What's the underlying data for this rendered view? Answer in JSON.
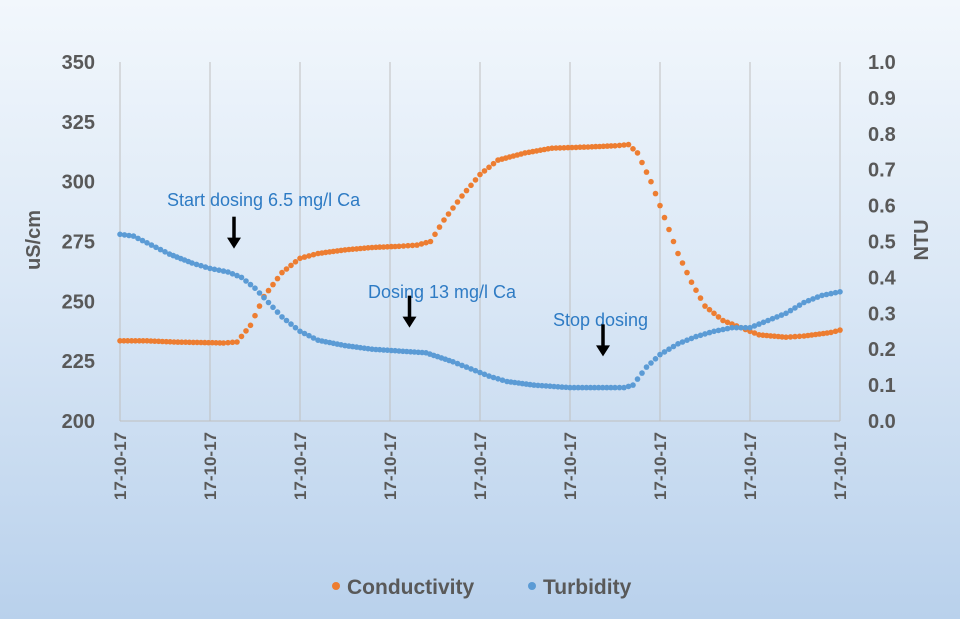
{
  "chart_data": {
    "type": "scatter",
    "title": "",
    "y_left": {
      "label": "uS/cm",
      "min": 200,
      "max": 350,
      "ticks": [
        200,
        225,
        250,
        275,
        300,
        325,
        350
      ]
    },
    "y_right": {
      "label": "NTU",
      "min": 0,
      "max": 1,
      "ticks": [
        "0.0",
        "0.1",
        "0.2",
        "0.3",
        "0.4",
        "0.5",
        "0.6",
        "0.7",
        "0.8",
        "0.9",
        "1.0"
      ]
    },
    "x_ticks": [
      "17-10-17",
      "17-10-17",
      "17-10-17",
      "17-10-17",
      "17-10-17",
      "17-10-17",
      "17-10-17",
      "17-10-17",
      "17-10-17"
    ],
    "x_range": [
      0,
      8
    ],
    "grid": "vertical",
    "series": [
      {
        "name": "Conductivity",
        "axis": "left",
        "color": "#ed7d31",
        "points": [
          [
            0,
            233.5
          ],
          [
            0.3,
            233.5
          ],
          [
            0.6,
            233.0
          ],
          [
            0.9,
            232.8
          ],
          [
            1.15,
            232.6
          ],
          [
            1.3,
            233
          ],
          [
            1.45,
            240
          ],
          [
            1.6,
            252
          ],
          [
            1.8,
            262
          ],
          [
            2.0,
            268
          ],
          [
            2.2,
            270
          ],
          [
            2.5,
            271.5
          ],
          [
            2.8,
            272.5
          ],
          [
            3.1,
            273
          ],
          [
            3.3,
            273.5
          ],
          [
            3.45,
            275
          ],
          [
            3.6,
            284
          ],
          [
            3.8,
            294
          ],
          [
            4.0,
            303
          ],
          [
            4.2,
            309
          ],
          [
            4.5,
            312
          ],
          [
            4.8,
            314
          ],
          [
            5.2,
            314.5
          ],
          [
            5.5,
            315
          ],
          [
            5.65,
            315.5
          ],
          [
            5.75,
            312
          ],
          [
            5.9,
            300
          ],
          [
            6.05,
            285
          ],
          [
            6.2,
            270
          ],
          [
            6.35,
            258
          ],
          [
            6.5,
            248
          ],
          [
            6.7,
            242
          ],
          [
            6.9,
            239
          ],
          [
            7.1,
            236
          ],
          [
            7.4,
            235
          ],
          [
            7.6,
            235.5
          ],
          [
            7.9,
            237
          ],
          [
            8.0,
            238
          ]
        ]
      },
      {
        "name": "Turbidity",
        "axis": "right",
        "color": "#5b9bd5",
        "points": [
          [
            0,
            0.52
          ],
          [
            0.15,
            0.515
          ],
          [
            0.35,
            0.49
          ],
          [
            0.55,
            0.465
          ],
          [
            0.8,
            0.44
          ],
          [
            1.0,
            0.425
          ],
          [
            1.2,
            0.415
          ],
          [
            1.35,
            0.4
          ],
          [
            1.5,
            0.37
          ],
          [
            1.65,
            0.33
          ],
          [
            1.8,
            0.29
          ],
          [
            2.0,
            0.25
          ],
          [
            2.2,
            0.225
          ],
          [
            2.5,
            0.21
          ],
          [
            2.8,
            0.2
          ],
          [
            3.1,
            0.195
          ],
          [
            3.4,
            0.19
          ],
          [
            3.7,
            0.165
          ],
          [
            3.9,
            0.145
          ],
          [
            4.1,
            0.125
          ],
          [
            4.3,
            0.11
          ],
          [
            4.6,
            0.1
          ],
          [
            5.0,
            0.093
          ],
          [
            5.5,
            0.093
          ],
          [
            5.6,
            0.093
          ],
          [
            5.7,
            0.1
          ],
          [
            5.85,
            0.15
          ],
          [
            6.0,
            0.185
          ],
          [
            6.2,
            0.215
          ],
          [
            6.4,
            0.235
          ],
          [
            6.6,
            0.25
          ],
          [
            6.8,
            0.26
          ],
          [
            7.0,
            0.26
          ],
          [
            7.2,
            0.28
          ],
          [
            7.4,
            0.3
          ],
          [
            7.6,
            0.33
          ],
          [
            7.8,
            0.35
          ],
          [
            8.0,
            0.36
          ]
        ]
      }
    ],
    "annotations": [
      {
        "text": "Start dosing 6.5 mg/l Ca",
        "x": 1.2,
        "arrow_y": 272
      },
      {
        "text": "Dosing 13 mg/l Ca",
        "x": 3.15,
        "arrow_y": 239
      },
      {
        "text": "Stop dosing",
        "x": 5.3,
        "arrow_y": 227
      }
    ],
    "legend": {
      "position": "bottom",
      "entries": [
        "Conductivity",
        "Turbidity"
      ]
    }
  }
}
